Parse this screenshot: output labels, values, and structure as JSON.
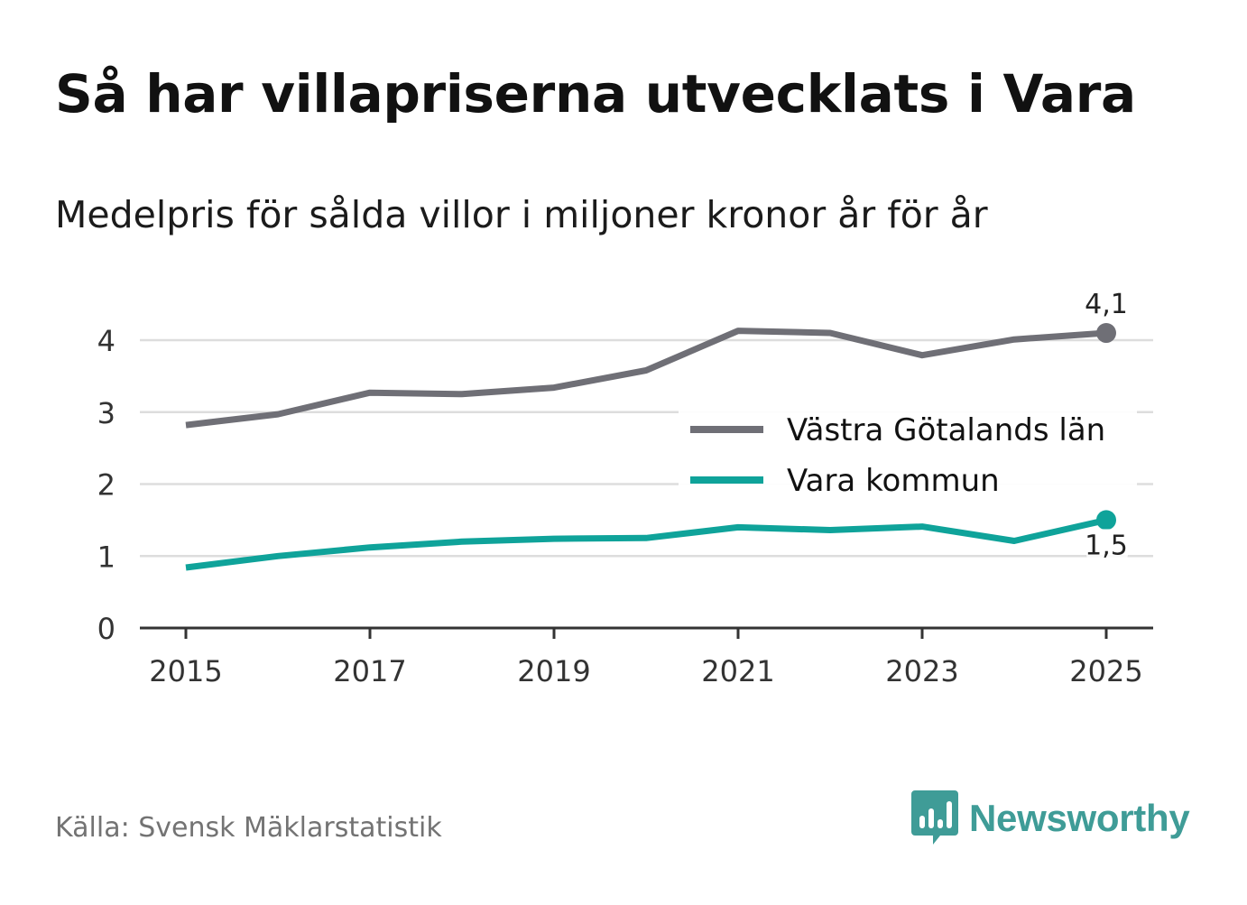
{
  "header": {
    "title": "Så har villapriserna utvecklats i Vara",
    "subtitle": "Medelpris för sålda villor i miljoner kronor år för år"
  },
  "footer": {
    "source": "Källa: Svensk Mäklarstatistik",
    "brand": "Newsworthy",
    "brand_icon": "bar-chart-speech-bubble-icon"
  },
  "colors": {
    "series_region": "#6f6f76",
    "series_kommun": "#0fa39a",
    "grid": "#dddddd",
    "axis": "#333333",
    "brand": "#3f9c97"
  },
  "chart_data": {
    "type": "line",
    "title": "Så har villapriserna utvecklats i Vara",
    "subtitle": "Medelpris för sålda villor i miljoner kronor år för år",
    "xlabel": "",
    "ylabel": "",
    "x": [
      2015,
      2016,
      2017,
      2018,
      2019,
      2020,
      2021,
      2022,
      2023,
      2024,
      2025
    ],
    "xticks": [
      "2015",
      "2017",
      "2019",
      "2021",
      "2023",
      "2025"
    ],
    "xlim": [
      2014.5,
      2025.5
    ],
    "yticks": [
      "0",
      "1",
      "2",
      "3",
      "4"
    ],
    "ylim": [
      0,
      4.4
    ],
    "grid": true,
    "legend_position": "right",
    "series": [
      {
        "name": "Västra Götalands län",
        "color": "#6f6f76",
        "values": [
          2.82,
          2.97,
          3.27,
          3.25,
          3.34,
          3.58,
          4.13,
          4.1,
          3.79,
          4.01,
          4.1
        ],
        "end_label": "4,1",
        "end_label_position": "above"
      },
      {
        "name": "Vara kommun",
        "color": "#0fa39a",
        "values": [
          0.84,
          1.0,
          1.12,
          1.2,
          1.24,
          1.25,
          1.4,
          1.36,
          1.41,
          1.21,
          1.5
        ],
        "end_label": "1,5",
        "end_label_position": "below"
      }
    ]
  }
}
